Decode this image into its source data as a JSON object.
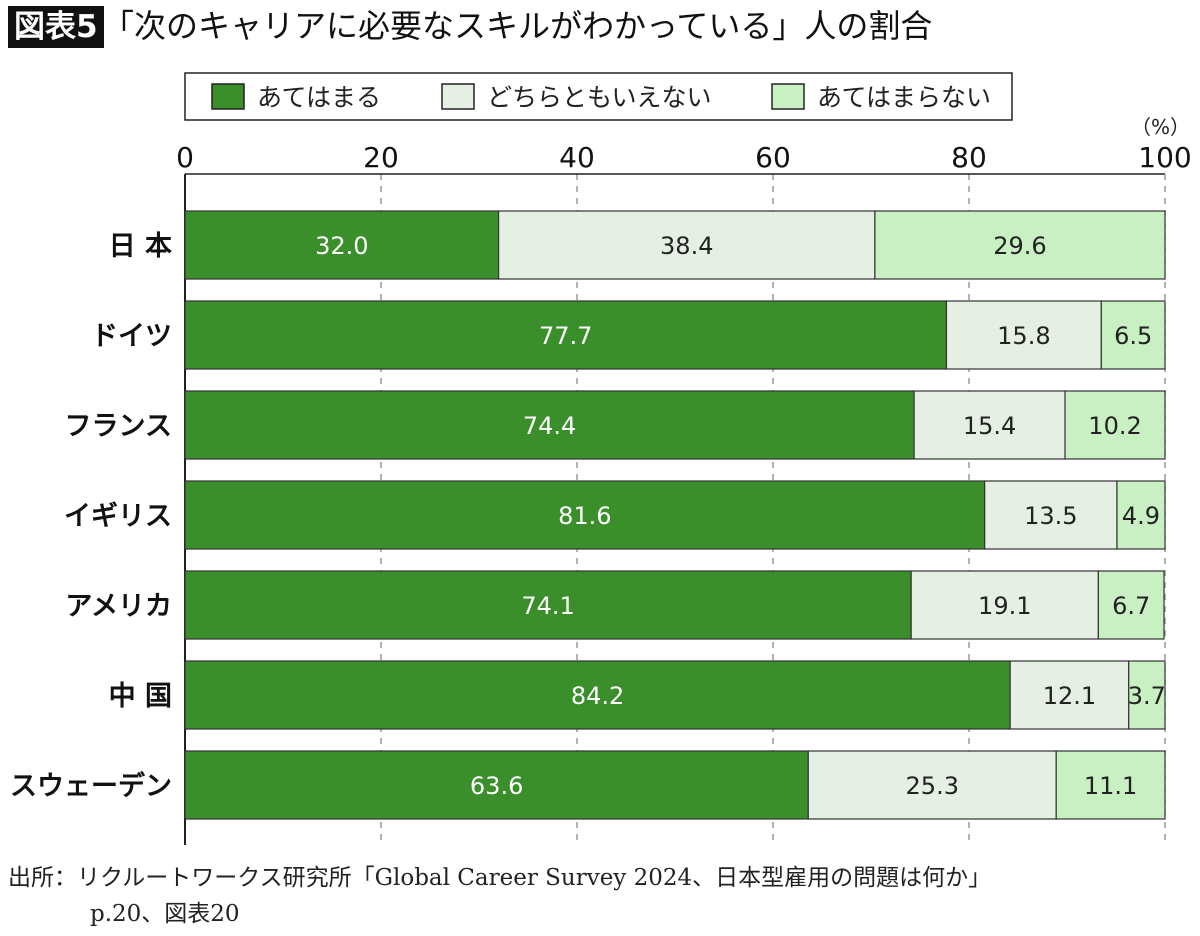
{
  "title_badge": "図表5",
  "title": "「次のキャリアに必要なスキルがわかっている」人の割合",
  "source_line1": "出所：リクルートワークス研究所「Global Career Survey 2024、日本型雇用の問題は何か」",
  "source_line2": "p.20、図表20",
  "chart_data": {
    "type": "bar",
    "orientation": "horizontal",
    "stacked": true,
    "categories": [
      "日 本",
      "ドイツ",
      "フランス",
      "イギリス",
      "アメリカ",
      "中 国",
      "スウェーデン"
    ],
    "series": [
      {
        "name": "あてはまる",
        "color": "#3a8f2a",
        "label_color": "#ffffff",
        "values": [
          32.0,
          77.7,
          74.4,
          81.6,
          74.1,
          84.2,
          63.6
        ]
      },
      {
        "name": "どちらともいえない",
        "color": "#e6efe3",
        "label_color": "#222222",
        "values": [
          38.4,
          15.8,
          15.4,
          13.5,
          19.1,
          12.1,
          25.3
        ]
      },
      {
        "name": "あてはまらない",
        "color": "#c9f0c2",
        "label_color": "#222222",
        "values": [
          29.6,
          6.5,
          10.2,
          4.9,
          6.7,
          3.7,
          11.1
        ]
      }
    ],
    "xlim": [
      0,
      100
    ],
    "xticks": [
      "0",
      "20",
      "40",
      "60",
      "80",
      "100"
    ],
    "unit_label": "（%）",
    "grid": "vertical dashed",
    "legend": "top"
  }
}
